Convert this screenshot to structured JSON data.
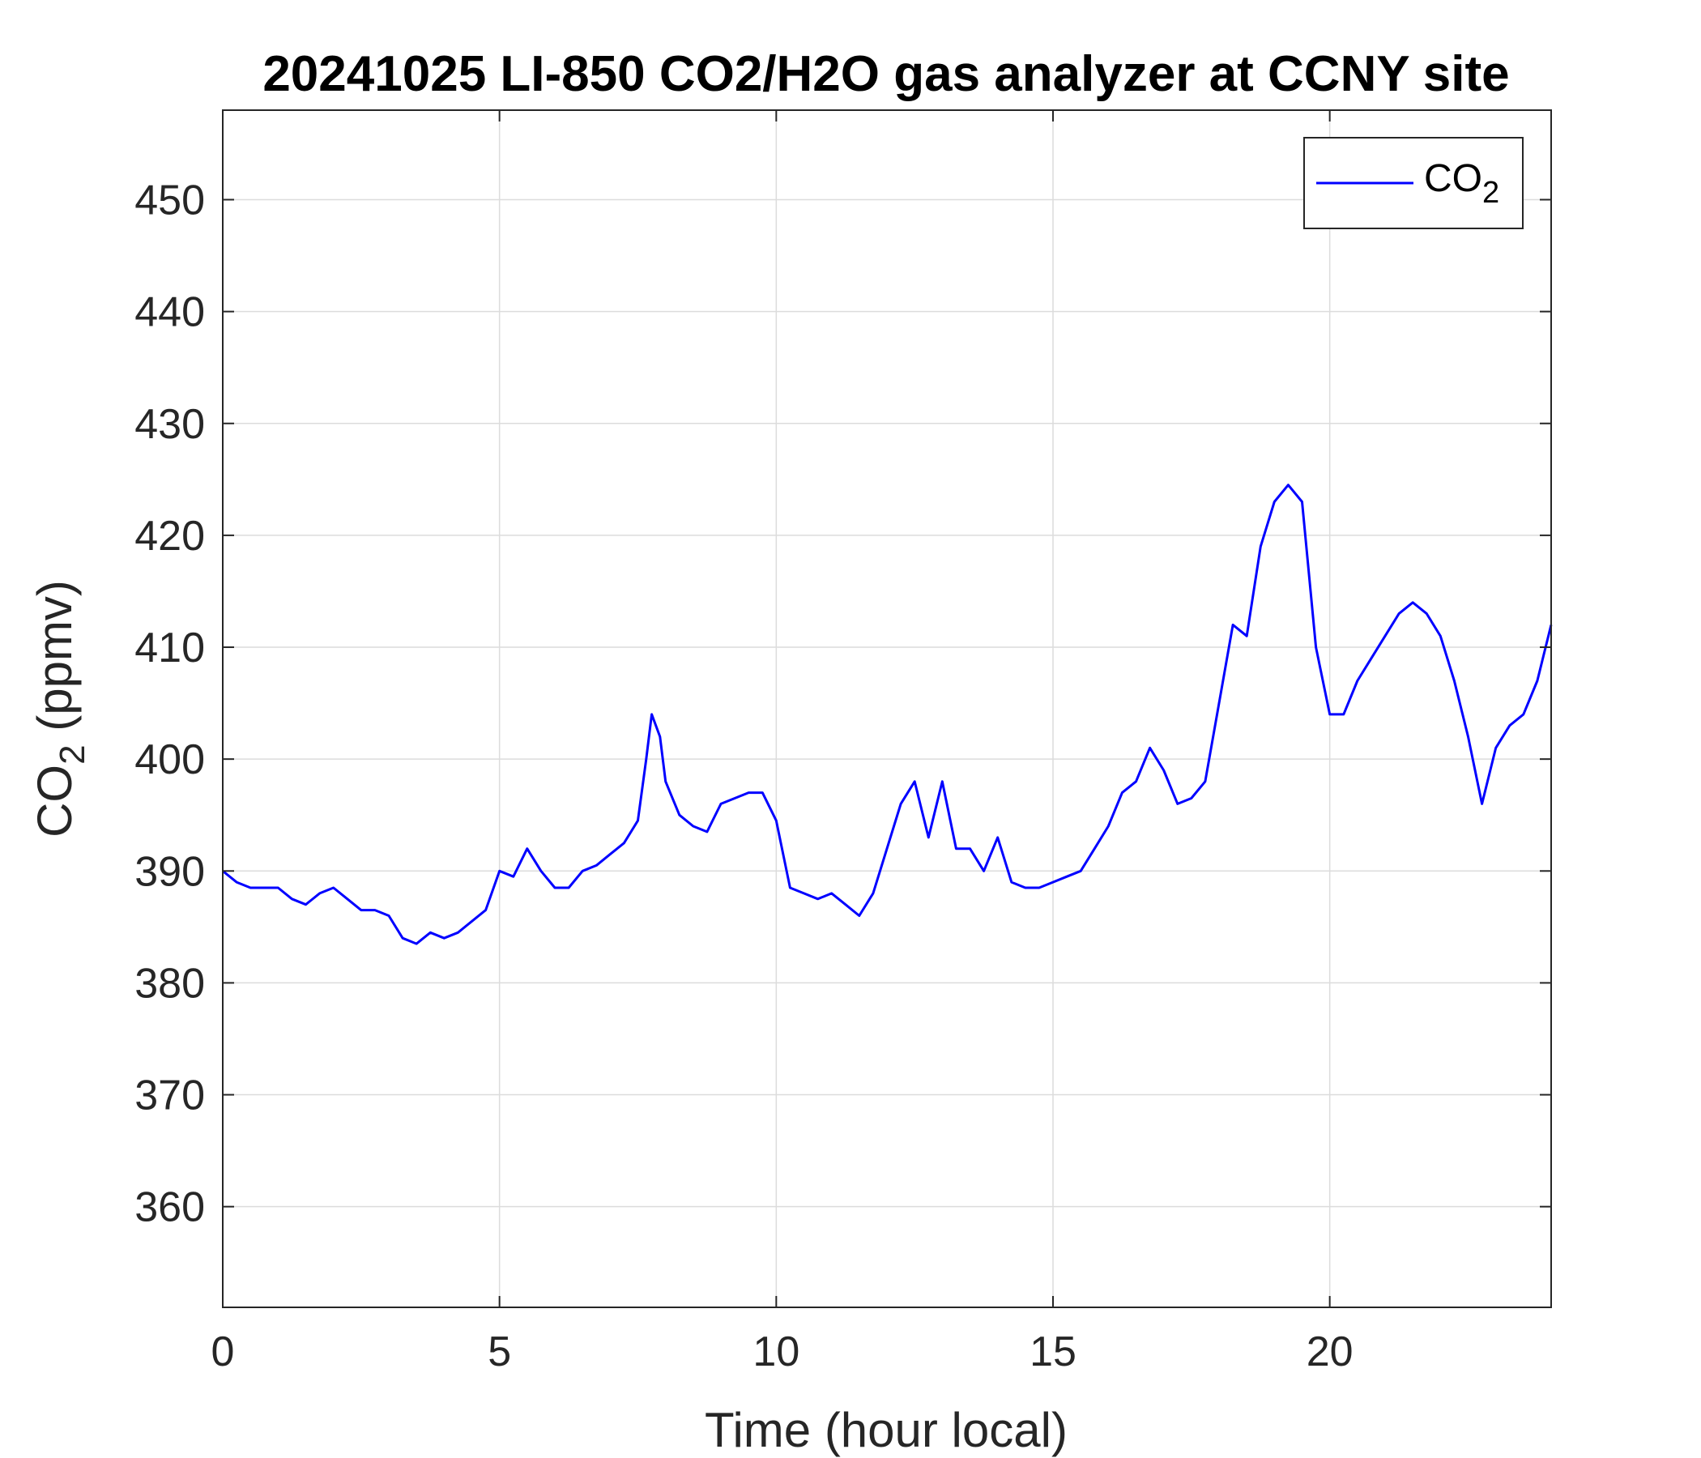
{
  "chart_data": {
    "type": "line",
    "title": "20241025 LI-850 CO2/H2O gas analyzer at CCNY site",
    "xlabel": "Time (hour local)",
    "ylabel": {
      "base": "CO",
      "sub": "2",
      "rest": " (ppmv)"
    },
    "xlim": [
      0,
      24
    ],
    "ylim": [
      351,
      458
    ],
    "xticks": [
      0,
      5,
      10,
      15,
      20
    ],
    "xtick_labels": [
      "0",
      "5",
      "10",
      "15",
      "20"
    ],
    "yticks": [
      360,
      370,
      380,
      390,
      400,
      410,
      420,
      430,
      440,
      450
    ],
    "ytick_labels": [
      "360",
      "370",
      "380",
      "390",
      "400",
      "410",
      "420",
      "430",
      "440",
      "450"
    ],
    "grid": true,
    "legend": {
      "position": "top-right",
      "entries": [
        {
          "base": "CO",
          "sub": "2"
        }
      ]
    },
    "series": [
      {
        "name": "CO2",
        "color": "#0000ff",
        "x": [
          0,
          0.25,
          0.5,
          0.75,
          1,
          1.25,
          1.5,
          1.75,
          2,
          2.25,
          2.5,
          2.75,
          3,
          3.25,
          3.5,
          3.75,
          4,
          4.25,
          4.5,
          4.75,
          5,
          5.25,
          5.5,
          5.75,
          6,
          6.25,
          6.5,
          6.75,
          7,
          7.25,
          7.5,
          7.65,
          7.75,
          7.9,
          8,
          8.25,
          8.5,
          8.75,
          9,
          9.25,
          9.5,
          9.75,
          10,
          10.25,
          10.5,
          10.75,
          11,
          11.25,
          11.5,
          11.75,
          12,
          12.25,
          12.5,
          12.75,
          13,
          13.25,
          13.5,
          13.75,
          14,
          14.25,
          14.5,
          14.75,
          15,
          15.25,
          15.5,
          15.75,
          16,
          16.25,
          16.5,
          16.75,
          17,
          17.25,
          17.5,
          17.75,
          18,
          18.25,
          18.5,
          18.75,
          19,
          19.25,
          19.5,
          19.75,
          20,
          20.25,
          20.5,
          20.75,
          21,
          21.25,
          21.5,
          21.75,
          22,
          22.25,
          22.5,
          22.75,
          23,
          23.25,
          23.5,
          23.75,
          24
        ],
        "y": [
          390,
          389,
          388.5,
          388.5,
          388.5,
          387.5,
          387,
          388,
          388.5,
          387.5,
          386.5,
          386.5,
          386,
          384,
          383.5,
          384.5,
          384,
          384.5,
          385.5,
          386.5,
          390,
          389.5,
          392,
          390,
          388.5,
          388.5,
          390,
          390.5,
          391.5,
          392.5,
          394.5,
          400,
          404,
          402,
          398,
          395,
          394,
          393.5,
          396,
          396.5,
          397,
          397,
          394.5,
          388.5,
          388,
          387.5,
          388,
          387,
          386,
          388,
          392,
          396,
          398,
          393,
          398,
          392,
          392,
          390,
          393,
          389,
          388.5,
          388.5,
          389,
          389.5,
          390,
          392,
          394,
          397,
          398,
          401,
          399,
          396,
          396.5,
          398,
          405,
          412,
          411,
          419,
          423,
          424.5,
          423,
          410,
          404,
          404,
          407,
          409,
          411,
          413,
          414,
          413,
          411,
          407,
          402,
          396,
          401,
          403,
          404,
          407,
          412
        ]
      }
    ]
  }
}
